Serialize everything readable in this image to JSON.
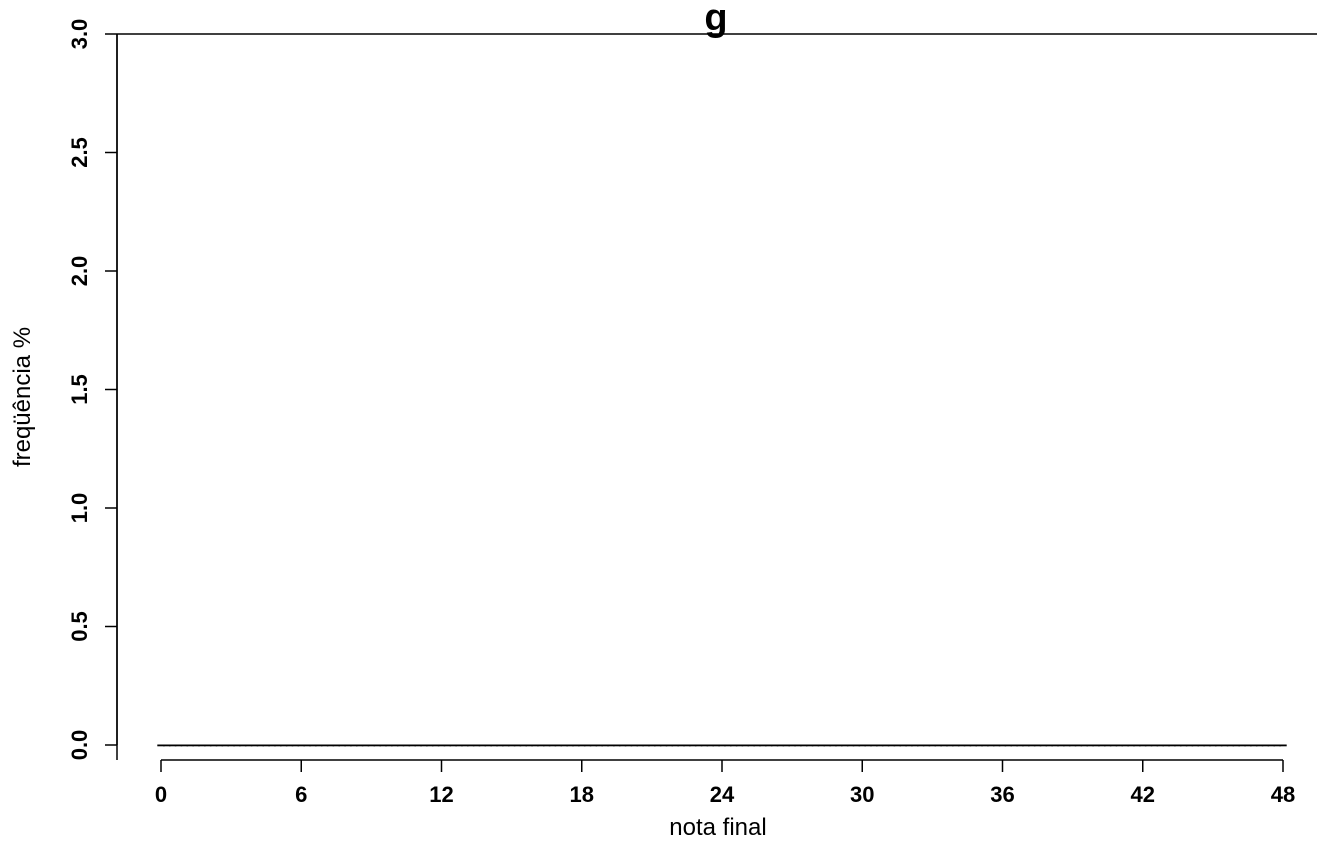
{
  "chart_data": {
    "type": "bar",
    "title": "g",
    "xlabel": "nota final",
    "ylabel": "freqüência %",
    "xlim": [
      0,
      48
    ],
    "ylim": [
      0,
      3
    ],
    "x_ticks": [
      0,
      6,
      12,
      18,
      24,
      30,
      36,
      42,
      48
    ],
    "x_tick_labels": [
      "0",
      "6",
      "12",
      "18",
      "24",
      "30",
      "36",
      "42",
      "48"
    ],
    "y_ticks": [
      0,
      0.5,
      1,
      1.5,
      2,
      2.5,
      3
    ],
    "y_tick_labels": [
      "0.0",
      "0.5",
      "1.0",
      "1.5",
      "2.0",
      "2.5",
      "3.0"
    ],
    "grid": false,
    "legend": "none",
    "colors": {
      "below_24": "#ee1111",
      "24_to_36": "#c8c8c8",
      "above_36": "#0000ee",
      "outline": "#000000"
    },
    "x": [
      0,
      0.25,
      0.5,
      0.75,
      1,
      1.25,
      1.5,
      1.75,
      2,
      2.25,
      2.5,
      2.75,
      3,
      3.25,
      3.5,
      3.75,
      4,
      4.25,
      4.5,
      4.75,
      5,
      5.25,
      5.5,
      5.75,
      6,
      6.25,
      6.5,
      6.75,
      7,
      7.25,
      7.5,
      7.75,
      8,
      8.25,
      8.5,
      8.75,
      9,
      9.25,
      9.5,
      9.75,
      10,
      10.25,
      10.5,
      10.75,
      11,
      11.25,
      11.5,
      11.75,
      12,
      12.25,
      12.5,
      12.75,
      13,
      13.25,
      13.5,
      13.75,
      14,
      14.25,
      14.5,
      14.75,
      15,
      15.25,
      15.5,
      15.75,
      16,
      16.25,
      16.5,
      16.75,
      17,
      17.25,
      17.5,
      17.75,
      18,
      18.25,
      18.5,
      18.75,
      19,
      19.25,
      19.5,
      19.75,
      20,
      20.25,
      20.5,
      20.75,
      21,
      21.25,
      21.5,
      21.75,
      22,
      22.25,
      22.5,
      22.75,
      23,
      23.25,
      23.5,
      23.75,
      24,
      24.25,
      24.5,
      24.75,
      25,
      25.25,
      25.5,
      25.75,
      26,
      26.25,
      26.5,
      26.75,
      27,
      27.25,
      27.5,
      27.75,
      28,
      28.25,
      28.5,
      28.75,
      29,
      29.25,
      29.5,
      29.75,
      30,
      30.25,
      30.5,
      30.75,
      31,
      31.25,
      31.5,
      31.75,
      32,
      32.25,
      32.5,
      32.75,
      33,
      33.25,
      33.5,
      33.75,
      34,
      34.25,
      34.5,
      34.75,
      35,
      35.25,
      35.5,
      35.75,
      36,
      36.25,
      36.5,
      36.75,
      37,
      37.25,
      37.5,
      37.75,
      38,
      38.25,
      38.5,
      38.75,
      39,
      39.25,
      39.5,
      39.75,
      40,
      40.25,
      40.5,
      40.75,
      41,
      41.25,
      41.5,
      41.75,
      42,
      42.25,
      42.5,
      42.75,
      43,
      43.25,
      43.5,
      43.75,
      44,
      44.25,
      44.5,
      44.75,
      45,
      45.25,
      45.5,
      45.75,
      46,
      46.25,
      46.5,
      46.75,
      47,
      47.25,
      47.5,
      47.75,
      48
    ],
    "values": [
      0,
      0,
      0,
      0,
      0,
      0,
      0,
      0,
      0,
      0,
      0,
      0,
      0,
      0,
      0,
      0,
      0,
      0,
      0,
      0,
      0,
      0,
      0,
      0,
      0,
      0,
      0,
      0,
      0,
      0,
      0,
      0,
      0,
      0,
      0,
      0,
      0,
      0,
      0,
      0,
      0,
      0,
      0,
      0,
      0,
      0,
      0,
      0,
      0,
      0,
      0,
      0,
      0,
      0,
      0,
      0,
      0,
      0,
      0,
      0,
      0,
      0,
      0,
      0,
      0,
      0,
      0,
      0,
      0,
      0,
      0,
      0,
      0,
      0,
      0,
      0,
      0,
      0,
      0,
      0,
      0,
      0,
      0,
      0,
      0,
      0,
      0,
      0,
      0,
      0,
      0,
      0,
      0,
      0,
      0,
      0,
      0,
      0,
      0,
      0,
      0,
      0,
      0,
      0,
      0,
      0,
      0,
      0,
      0,
      0,
      0,
      0,
      0,
      0,
      0,
      0,
      0,
      0,
      0,
      0,
      0,
      0,
      0,
      0,
      0,
      0,
      0,
      0,
      0,
      0,
      0,
      0,
      0,
      0,
      0,
      0,
      0,
      0,
      0,
      0,
      0,
      0,
      0,
      0,
      0,
      0,
      0,
      0,
      0,
      0,
      0,
      0,
      0,
      0,
      0,
      0,
      0,
      0,
      0,
      0,
      0,
      0,
      0,
      0,
      0,
      0,
      0,
      0,
      0,
      0,
      0,
      0,
      0,
      0,
      0,
      0,
      0,
      0,
      0,
      0,
      0,
      0,
      0,
      0,
      0,
      0,
      0,
      0,
      0,
      0,
      0,
      0,
      0
    ]
  }
}
